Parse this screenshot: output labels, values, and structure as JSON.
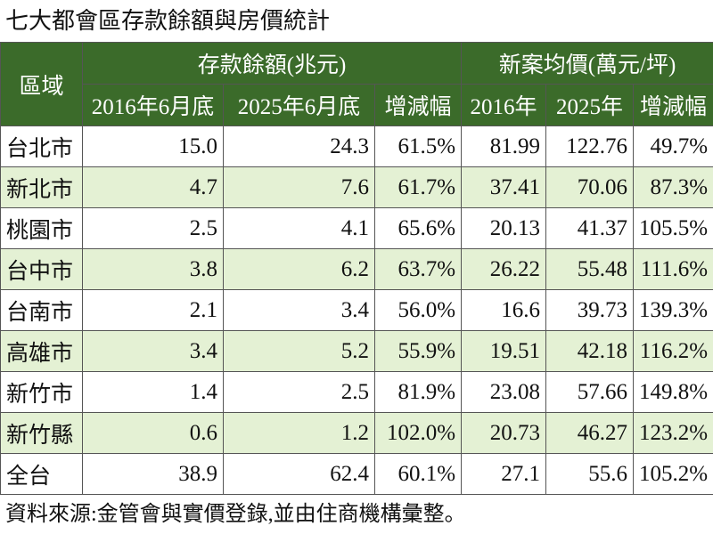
{
  "title": "七大都會區存款餘額與房價統計",
  "table": {
    "region_header": "區域",
    "groups": [
      "存款餘額(兆元)",
      "新案均價(萬元/坪)"
    ],
    "subheaders": [
      "2016年6月底",
      "2025年6月底",
      "增減幅",
      "2016年",
      "2025年",
      "增減幅"
    ],
    "rows": [
      [
        "台北市",
        "15.0",
        "24.3",
        "61.5%",
        "81.99",
        "122.76",
        "49.7%"
      ],
      [
        "新北市",
        "4.7",
        "7.6",
        "61.7%",
        "37.41",
        "70.06",
        "87.3%"
      ],
      [
        "桃園市",
        "2.5",
        "4.1",
        "65.6%",
        "20.13",
        "41.37",
        "105.5%"
      ],
      [
        "台中市",
        "3.8",
        "6.2",
        "63.7%",
        "26.22",
        "55.48",
        "111.6%"
      ],
      [
        "台南市",
        "2.1",
        "3.4",
        "56.0%",
        "16.6",
        "39.73",
        "139.3%"
      ],
      [
        "高雄市",
        "3.4",
        "5.2",
        "55.9%",
        "19.51",
        "42.18",
        "116.2%"
      ],
      [
        "新竹市",
        "1.4",
        "2.5",
        "81.9%",
        "23.08",
        "57.66",
        "149.8%"
      ],
      [
        "新竹縣",
        "0.6",
        "1.2",
        "102.0%",
        "20.73",
        "46.27",
        "123.2%"
      ],
      [
        "全台",
        "38.9",
        "62.4",
        "60.1%",
        "27.1",
        "55.6",
        "105.2%"
      ]
    ]
  },
  "source": "資料來源:金管會與實價登錄,並由住商機構彙整。"
}
